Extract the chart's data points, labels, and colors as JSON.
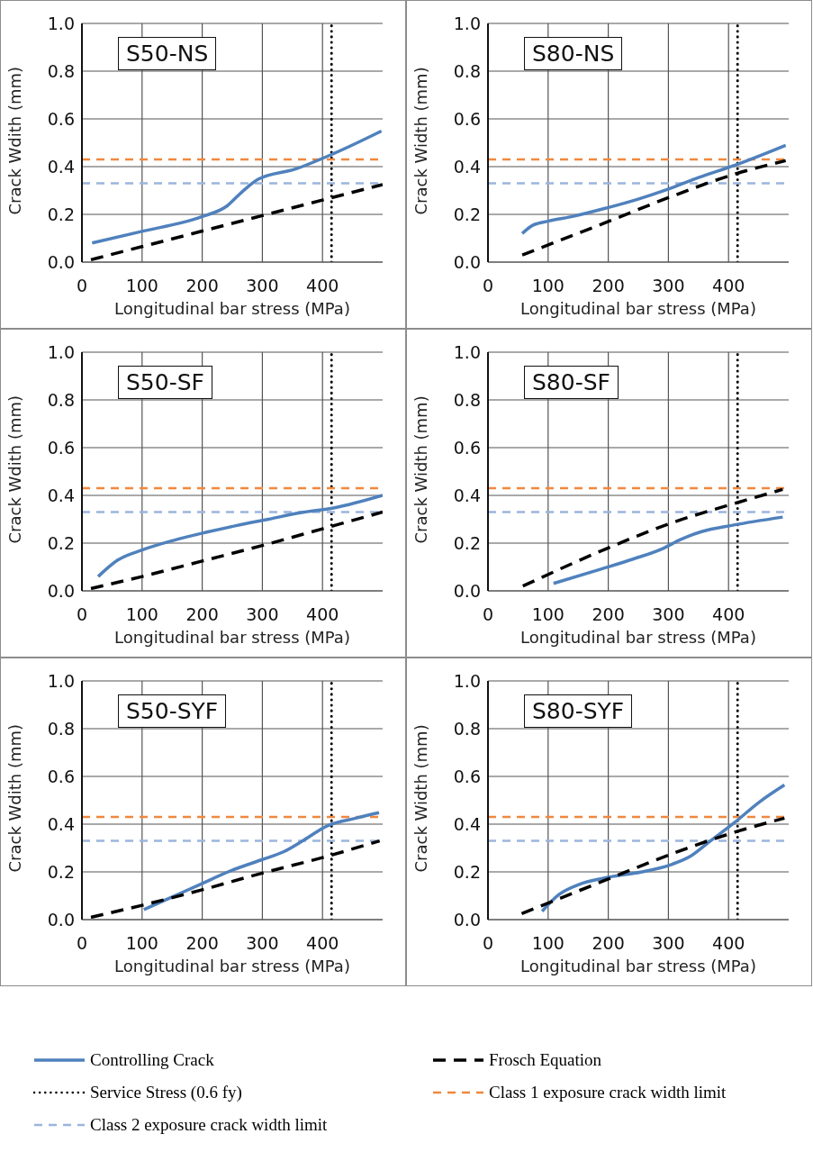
{
  "chart_data": [
    {
      "type": "line",
      "title": "S50-NS",
      "xlabel": "Longitudinal bar stress (MPa)",
      "ylabel": "Crack Wdith (mm)",
      "xlim": [
        0,
        500
      ],
      "xticks": [
        0,
        100,
        200,
        300,
        400
      ],
      "ylim": [
        0,
        1
      ],
      "yticks": [
        {
          "value": 0,
          "label": "0.0"
        },
        {
          "value": 0.2,
          "label": "0.2"
        },
        {
          "value": 0.4,
          "label": "0.4"
        },
        {
          "value": 0.6,
          "label": "0.6"
        },
        {
          "value": 0.8,
          "label": "0.8"
        },
        {
          "value": 1,
          "label": "1.0"
        }
      ],
      "grid": true,
      "series": [
        {
          "color": "#4f81bd",
          "line_style": "solid",
          "x": [
            17,
            95,
            199,
            240,
            267,
            293,
            355,
            418,
            498
          ],
          "values": [
            0.08,
            0.126,
            0.19,
            0.233,
            0.296,
            0.347,
            0.39,
            0.454,
            0.549
          ]
        },
        {
          "color": "#000000",
          "line_style": "dashed",
          "x": [
            15,
            100,
            200,
            300,
            400,
            500
          ],
          "values": [
            0.01,
            0.065,
            0.13,
            0.195,
            0.26,
            0.325
          ]
        }
      ],
      "ref_lines": [
        {
          "axis": "x",
          "value": 415,
          "color": "#000000",
          "line_style": "dotted"
        },
        {
          "axis": "y",
          "value": 0.43,
          "color": "#f0883e",
          "line_style": "dashed"
        },
        {
          "axis": "y",
          "value": 0.33,
          "color": "#9bb5dc",
          "line_style": "dashed"
        }
      ]
    },
    {
      "type": "line",
      "title": "S80-NS",
      "xlabel": "Longitudinal bar stress (MPa)",
      "ylabel": "Crack Width (mm)",
      "xlim": [
        0,
        500
      ],
      "xticks": [
        0,
        100,
        200,
        300,
        400
      ],
      "ylim": [
        0,
        1
      ],
      "yticks": [
        {
          "value": 0,
          "label": "0.0"
        },
        {
          "value": 0.2,
          "label": "0.2"
        },
        {
          "value": 0.4,
          "label": "0.4"
        },
        {
          "value": 0.6,
          "label": "0.6"
        },
        {
          "value": 0.8,
          "label": "0.8"
        },
        {
          "value": 1,
          "label": "1.0"
        }
      ],
      "grid": true,
      "series": [
        {
          "color": "#4f81bd",
          "line_style": "solid",
          "x": [
            57,
            75,
            101,
            142,
            199,
            246,
            298,
            350,
            412,
            495
          ],
          "values": [
            0.12,
            0.155,
            0.172,
            0.192,
            0.228,
            0.261,
            0.304,
            0.354,
            0.407,
            0.489
          ]
        },
        {
          "color": "#000000",
          "line_style": "dashed",
          "x": [
            57,
            200,
            300,
            412,
            495
          ],
          "values": [
            0.03,
            0.17,
            0.27,
            0.37,
            0.425
          ]
        }
      ],
      "ref_lines": [
        {
          "axis": "x",
          "value": 415,
          "color": "#000000",
          "line_style": "dotted"
        },
        {
          "axis": "y",
          "value": 0.43,
          "color": "#f0883e",
          "line_style": "dashed"
        },
        {
          "axis": "y",
          "value": 0.33,
          "color": "#9bb5dc",
          "line_style": "dashed"
        }
      ]
    },
    {
      "type": "line",
      "title": "S50-SF",
      "xlabel": "Longitudinal bar stress (MPa)",
      "ylabel": "Crack Wdith (mm)",
      "xlim": [
        0,
        500
      ],
      "xticks": [
        0,
        100,
        200,
        300,
        400
      ],
      "ylim": [
        0,
        1
      ],
      "yticks": [
        {
          "value": 0,
          "label": "0.0"
        },
        {
          "value": 0.2,
          "label": "0.2"
        },
        {
          "value": 0.4,
          "label": "0.4"
        },
        {
          "value": 0.6,
          "label": "0.6"
        },
        {
          "value": 0.8,
          "label": "0.8"
        },
        {
          "value": 1,
          "label": "1.0"
        }
      ],
      "grid": true,
      "series": [
        {
          "color": "#4f81bd",
          "line_style": "solid",
          "x": [
            27,
            59,
            101,
            153,
            206,
            258,
            310,
            363,
            420,
            500
          ],
          "values": [
            0.06,
            0.128,
            0.172,
            0.212,
            0.245,
            0.274,
            0.3,
            0.327,
            0.348,
            0.4
          ]
        },
        {
          "color": "#000000",
          "line_style": "dashed",
          "x": [
            15,
            100,
            200,
            300,
            400,
            500
          ],
          "values": [
            0.01,
            0.06,
            0.125,
            0.19,
            0.26,
            0.33
          ]
        }
      ],
      "ref_lines": [
        {
          "axis": "x",
          "value": 415,
          "color": "#000000",
          "line_style": "dotted"
        },
        {
          "axis": "y",
          "value": 0.43,
          "color": "#f0883e",
          "line_style": "dashed"
        },
        {
          "axis": "y",
          "value": 0.33,
          "color": "#9bb5dc",
          "line_style": "dashed"
        }
      ]
    },
    {
      "type": "line",
      "title": "S80-SF",
      "xlabel": "Longitudinal bar stress (MPa)",
      "ylabel": "Crack Width (mm)",
      "xlim": [
        0,
        500
      ],
      "xticks": [
        0,
        100,
        200,
        300,
        400
      ],
      "ylim": [
        0,
        1
      ],
      "yticks": [
        {
          "value": 0,
          "label": "0.0"
        },
        {
          "value": 0.2,
          "label": "0.2"
        },
        {
          "value": 0.4,
          "label": "0.4"
        },
        {
          "value": 0.6,
          "label": "0.6"
        },
        {
          "value": 0.8,
          "label": "0.8"
        },
        {
          "value": 1,
          "label": "1.0"
        }
      ],
      "grid": true,
      "series": [
        {
          "color": "#4f81bd",
          "line_style": "solid",
          "x": [
            109,
            189,
            241,
            293,
            319,
            355,
            407,
            490
          ],
          "values": [
            0.031,
            0.092,
            0.133,
            0.18,
            0.214,
            0.248,
            0.275,
            0.309
          ]
        },
        {
          "color": "#000000",
          "line_style": "dashed",
          "x": [
            58,
            200,
            300,
            415,
            490
          ],
          "values": [
            0.02,
            0.18,
            0.28,
            0.37,
            0.425
          ]
        }
      ],
      "ref_lines": [
        {
          "axis": "x",
          "value": 415,
          "color": "#000000",
          "line_style": "dotted"
        },
        {
          "axis": "y",
          "value": 0.43,
          "color": "#f0883e",
          "line_style": "dashed"
        },
        {
          "axis": "y",
          "value": 0.33,
          "color": "#9bb5dc",
          "line_style": "dashed"
        }
      ]
    },
    {
      "type": "line",
      "title": "S50-SYF",
      "xlabel": "Longitudinal bar stress (MPa)",
      "ylabel": "Crack Wdith (mm)",
      "xlim": [
        0,
        500
      ],
      "xticks": [
        0,
        100,
        200,
        300,
        400
      ],
      "ylim": [
        0,
        1
      ],
      "yticks": [
        {
          "value": 0,
          "label": "0.0"
        },
        {
          "value": 0.2,
          "label": "0.2"
        },
        {
          "value": 0.4,
          "label": "0.4"
        },
        {
          "value": 0.6,
          "label": "0.6"
        },
        {
          "value": 0.8,
          "label": "0.8"
        },
        {
          "value": 1,
          "label": "1.0"
        }
      ],
      "grid": true,
      "series": [
        {
          "color": "#4f81bd",
          "line_style": "solid",
          "x": [
            103,
            144,
            196,
            248,
            299,
            335,
            367,
            408,
            455,
            494
          ],
          "values": [
            0.042,
            0.088,
            0.147,
            0.205,
            0.251,
            0.284,
            0.33,
            0.393,
            0.425,
            0.448
          ]
        },
        {
          "color": "#000000",
          "line_style": "dashed",
          "x": [
            15,
            100,
            200,
            300,
            400,
            495
          ],
          "values": [
            0.01,
            0.06,
            0.125,
            0.195,
            0.26,
            0.33
          ]
        }
      ],
      "ref_lines": [
        {
          "axis": "x",
          "value": 415,
          "color": "#000000",
          "line_style": "dotted"
        },
        {
          "axis": "y",
          "value": 0.43,
          "color": "#f0883e",
          "line_style": "dashed"
        },
        {
          "axis": "y",
          "value": 0.33,
          "color": "#9bb5dc",
          "line_style": "dashed"
        }
      ]
    },
    {
      "type": "line",
      "title": "S80-SYF",
      "xlabel": "Longitudinal bar stress (MPa)",
      "ylabel": "Crack Width (mm)",
      "xlim": [
        0,
        500
      ],
      "xticks": [
        0,
        100,
        200,
        300,
        400
      ],
      "ylim": [
        0,
        1
      ],
      "yticks": [
        {
          "value": 0,
          "label": "0.0"
        },
        {
          "value": 0.2,
          "label": "0.2"
        },
        {
          "value": 0.4,
          "label": "0.4"
        },
        {
          "value": 0.6,
          "label": "0.6"
        },
        {
          "value": 0.8,
          "label": "0.8"
        },
        {
          "value": 1,
          "label": "1.0"
        }
      ],
      "grid": true,
      "legend": "bottom",
      "series": [
        {
          "name": "Controlling Crack",
          "color": "#4f81bd",
          "line_style": "solid",
          "x": [
            90,
            118,
            149,
            202,
            254,
            306,
            337,
            368,
            410,
            452,
            493
          ],
          "values": [
            0.035,
            0.105,
            0.145,
            0.178,
            0.199,
            0.232,
            0.266,
            0.326,
            0.407,
            0.494,
            0.564
          ]
        },
        {
          "name": "Frosch Equation",
          "color": "#000000",
          "line_style": "dashed",
          "x": [
            56,
            200,
            300,
            415,
            493
          ],
          "values": [
            0.025,
            0.17,
            0.27,
            0.37,
            0.425
          ]
        }
      ],
      "ref_lines": [
        {
          "axis": "x",
          "value": 415,
          "label": "Service Stress (0.6 fy)",
          "color": "#000000",
          "line_style": "dotted"
        },
        {
          "axis": "y",
          "value": 0.43,
          "label": "Class 1 exposure crack width limit",
          "color": "#f0883e",
          "line_style": "dashed"
        },
        {
          "axis": "y",
          "value": 0.33,
          "label": "Class 2 exposure crack width limit",
          "color": "#9bb5dc",
          "line_style": "dashed"
        }
      ]
    }
  ]
}
